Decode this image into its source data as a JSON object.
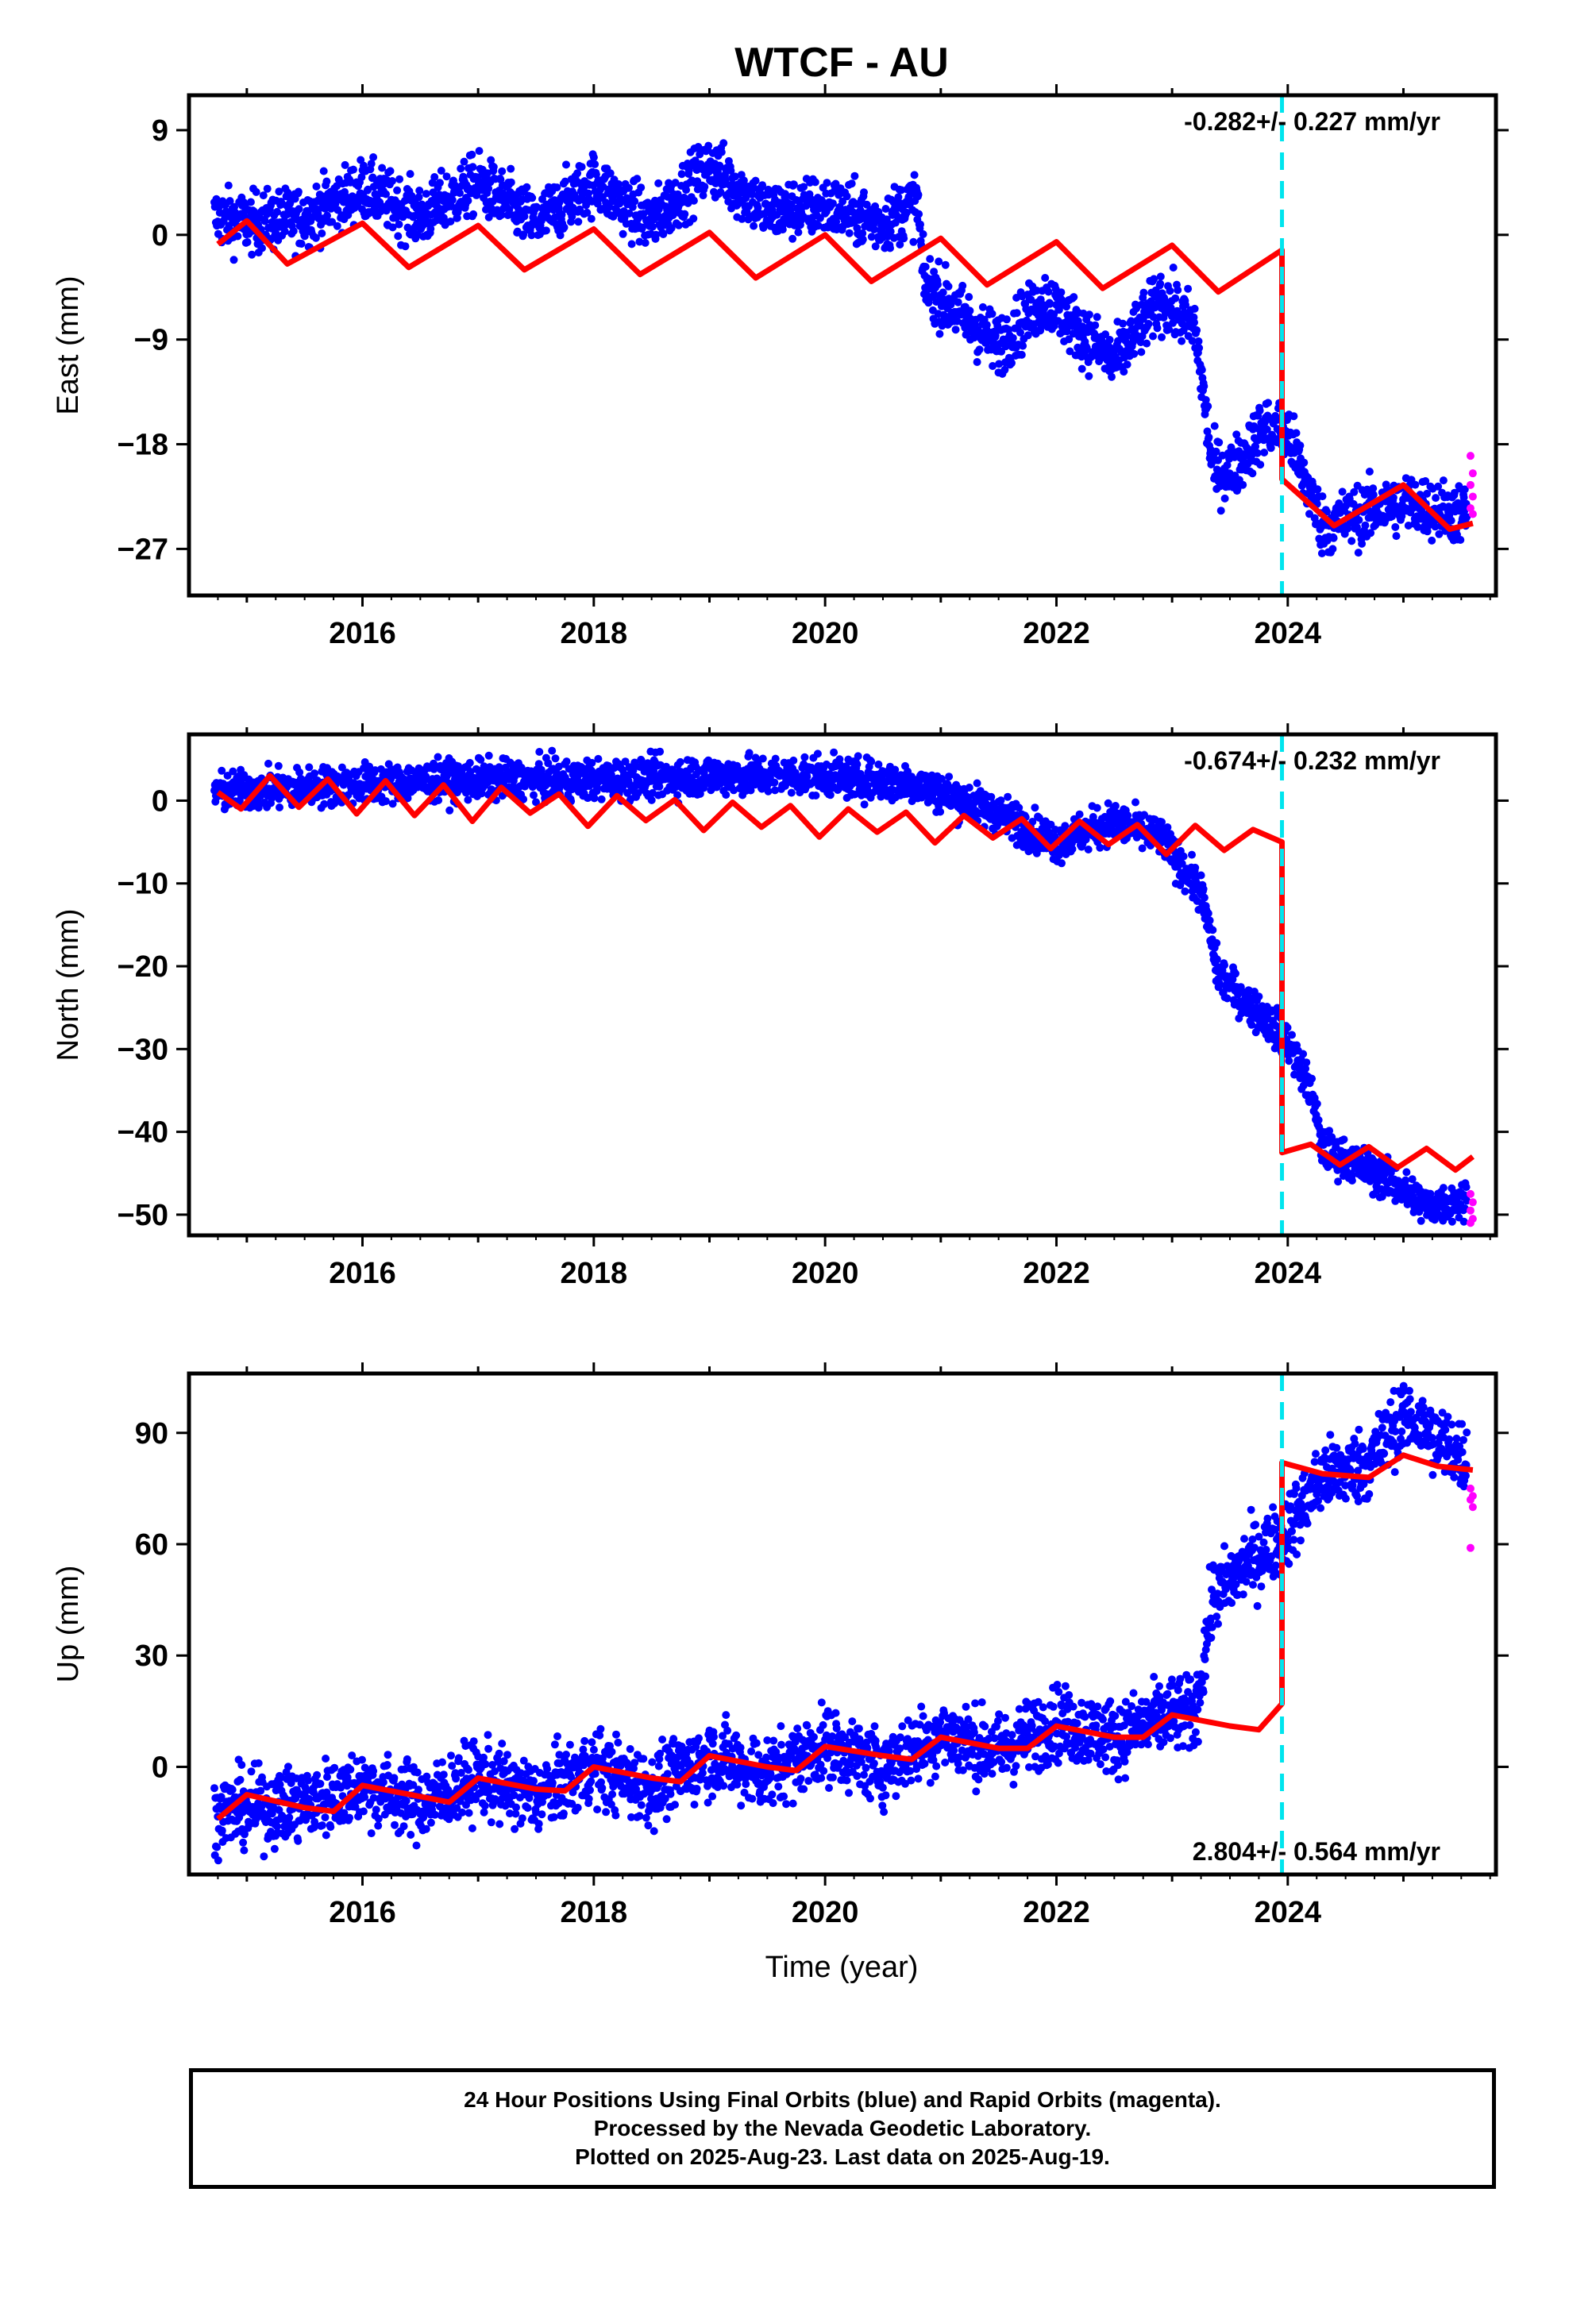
{
  "chart_data": {
    "type": "scatter",
    "title": "WTCF - AU",
    "xlabel": "Time (year)",
    "x_ticks": [
      "2016",
      "2018",
      "2020",
      "2022",
      "2024"
    ],
    "xlim": [
      2014.5,
      2025.8
    ],
    "event_marker_year": 2023.95,
    "colors": {
      "final_orbits": "#0000ff",
      "rapid_orbits": "#ff00ff",
      "model_fit": "#ff0000",
      "event_line": "#00e5ee"
    },
    "panels": [
      {
        "id": "east",
        "ylabel": "East (mm)",
        "ylim": [
          -31,
          12
        ],
        "y_ticks": [
          9,
          0,
          -9,
          -18,
          -27
        ],
        "y_tick_labels": [
          "9",
          "0",
          "−9",
          "−18",
          "−27"
        ],
        "rate_label": "-0.282+/- 0.227 mm/yr",
        "rate_position": "top-right",
        "breakpoints": [
          {
            "x": 2014.75,
            "y": 1.5
          },
          {
            "x": 2015.0,
            "y": 1.0
          },
          {
            "x": 2015.5,
            "y": 1.5
          },
          {
            "x": 2016.0,
            "y": 4.0
          },
          {
            "x": 2016.5,
            "y": 1.5
          },
          {
            "x": 2017.0,
            "y": 4.5
          },
          {
            "x": 2017.5,
            "y": 1.0
          },
          {
            "x": 2018.0,
            "y": 4.5
          },
          {
            "x": 2018.5,
            "y": 1.0
          },
          {
            "x": 2019.0,
            "y": 6.0
          },
          {
            "x": 2019.5,
            "y": 2.0
          },
          {
            "x": 2020.0,
            "y": 2.5
          },
          {
            "x": 2020.5,
            "y": 1.0
          },
          {
            "x": 2020.8,
            "y": 3.0
          },
          {
            "x": 2020.85,
            "y": -4.0
          },
          {
            "x": 2021.3,
            "y": -8.0
          },
          {
            "x": 2021.5,
            "y": -9.5
          },
          {
            "x": 2021.9,
            "y": -5.5
          },
          {
            "x": 2022.5,
            "y": -11.0
          },
          {
            "x": 2022.9,
            "y": -5.5
          },
          {
            "x": 2023.2,
            "y": -8.0
          },
          {
            "x": 2023.35,
            "y": -20.0
          },
          {
            "x": 2023.5,
            "y": -20.5
          },
          {
            "x": 2023.8,
            "y": -16.5
          },
          {
            "x": 2024.0,
            "y": -17.0
          },
          {
            "x": 2024.3,
            "y": -25.0
          },
          {
            "x": 2025.0,
            "y": -23.0
          },
          {
            "x": 2025.5,
            "y": -24.0
          }
        ],
        "model": [
          {
            "x": 2014.75,
            "y": -0.8
          },
          {
            "x": 2015.0,
            "y": 1.2
          },
          {
            "x": 2015.35,
            "y": -2.5
          },
          {
            "x": 2016.0,
            "y": 1.0
          },
          {
            "x": 2016.4,
            "y": -2.8
          },
          {
            "x": 2017.0,
            "y": 0.8
          },
          {
            "x": 2017.4,
            "y": -3.0
          },
          {
            "x": 2018.0,
            "y": 0.5
          },
          {
            "x": 2018.4,
            "y": -3.4
          },
          {
            "x": 2019.0,
            "y": 0.2
          },
          {
            "x": 2019.4,
            "y": -3.7
          },
          {
            "x": 2020.0,
            "y": 0.0
          },
          {
            "x": 2020.4,
            "y": -4.0
          },
          {
            "x": 2021.0,
            "y": -0.3
          },
          {
            "x": 2021.4,
            "y": -4.3
          },
          {
            "x": 2022.0,
            "y": -0.6
          },
          {
            "x": 2022.4,
            "y": -4.6
          },
          {
            "x": 2023.0,
            "y": -0.9
          },
          {
            "x": 2023.4,
            "y": -4.9
          },
          {
            "x": 2023.95,
            "y": -1.3
          },
          {
            "x": 2023.95,
            "y": -21.0
          },
          {
            "x": 2024.4,
            "y": -25.0
          },
          {
            "x": 2025.0,
            "y": -21.5
          },
          {
            "x": 2025.4,
            "y": -25.3
          },
          {
            "x": 2025.6,
            "y": -24.8
          }
        ],
        "rapid_points": [
          -19.0,
          -20.5,
          -21.5,
          -22.5,
          -23.5,
          -24.0
        ]
      },
      {
        "id": "north",
        "ylabel": "North (mm)",
        "ylim": [
          -52.5,
          8
        ],
        "y_ticks": [
          0,
          -10,
          -20,
          -30,
          -40,
          -50
        ],
        "y_tick_labels": [
          "0",
          "−10",
          "−20",
          "−30",
          "−40",
          "−50"
        ],
        "rate_label": "-0.674+/- 0.232 mm/yr",
        "rate_position": "top-right",
        "breakpoints": [
          {
            "x": 2014.75,
            "y": 1.0
          },
          {
            "x": 2016.0,
            "y": 2.0
          },
          {
            "x": 2017.0,
            "y": 2.5
          },
          {
            "x": 2018.0,
            "y": 2.5
          },
          {
            "x": 2019.0,
            "y": 3.0
          },
          {
            "x": 2020.0,
            "y": 3.0
          },
          {
            "x": 2020.8,
            "y": 2.0
          },
          {
            "x": 2021.5,
            "y": -1.5
          },
          {
            "x": 2022.0,
            "y": -5.0
          },
          {
            "x": 2022.5,
            "y": -2.5
          },
          {
            "x": 2022.9,
            "y": -4.5
          },
          {
            "x": 2023.25,
            "y": -11.0
          },
          {
            "x": 2023.4,
            "y": -21.0
          },
          {
            "x": 2023.7,
            "y": -25.0
          },
          {
            "x": 2024.0,
            "y": -29.0
          },
          {
            "x": 2024.2,
            "y": -35.0
          },
          {
            "x": 2024.3,
            "y": -42.0
          },
          {
            "x": 2024.9,
            "y": -46.0
          },
          {
            "x": 2025.2,
            "y": -49.0
          },
          {
            "x": 2025.6,
            "y": -48.0
          }
        ],
        "model": [
          {
            "x": 2014.75,
            "y": 1.0
          },
          {
            "x": 2014.95,
            "y": -1.0
          },
          {
            "x": 2015.2,
            "y": 3.0
          },
          {
            "x": 2015.45,
            "y": -0.8
          },
          {
            "x": 2015.7,
            "y": 2.6
          },
          {
            "x": 2015.95,
            "y": -1.6
          },
          {
            "x": 2016.2,
            "y": 2.4
          },
          {
            "x": 2016.45,
            "y": -1.8
          },
          {
            "x": 2016.7,
            "y": 1.9
          },
          {
            "x": 2016.95,
            "y": -2.5
          },
          {
            "x": 2017.2,
            "y": 1.6
          },
          {
            "x": 2017.45,
            "y": -1.5
          },
          {
            "x": 2017.7,
            "y": 0.8
          },
          {
            "x": 2017.95,
            "y": -3.1
          },
          {
            "x": 2018.2,
            "y": 0.6
          },
          {
            "x": 2018.45,
            "y": -2.4
          },
          {
            "x": 2018.7,
            "y": 0.1
          },
          {
            "x": 2018.95,
            "y": -3.6
          },
          {
            "x": 2019.2,
            "y": -0.2
          },
          {
            "x": 2019.45,
            "y": -3.2
          },
          {
            "x": 2019.7,
            "y": -0.6
          },
          {
            "x": 2019.95,
            "y": -4.4
          },
          {
            "x": 2020.2,
            "y": -1.0
          },
          {
            "x": 2020.45,
            "y": -3.8
          },
          {
            "x": 2020.7,
            "y": -1.4
          },
          {
            "x": 2020.95,
            "y": -5.1
          },
          {
            "x": 2021.2,
            "y": -1.8
          },
          {
            "x": 2021.45,
            "y": -4.5
          },
          {
            "x": 2021.7,
            "y": -2.2
          },
          {
            "x": 2021.95,
            "y": -5.8
          },
          {
            "x": 2022.2,
            "y": -2.5
          },
          {
            "x": 2022.45,
            "y": -5.3
          },
          {
            "x": 2022.7,
            "y": -2.9
          },
          {
            "x": 2022.95,
            "y": -6.5
          },
          {
            "x": 2023.2,
            "y": -3.0
          },
          {
            "x": 2023.45,
            "y": -6.0
          },
          {
            "x": 2023.7,
            "y": -3.5
          },
          {
            "x": 2023.95,
            "y": -5.0
          },
          {
            "x": 2023.95,
            "y": -42.5
          },
          {
            "x": 2024.2,
            "y": -41.5
          },
          {
            "x": 2024.45,
            "y": -44.0
          },
          {
            "x": 2024.7,
            "y": -41.8
          },
          {
            "x": 2024.95,
            "y": -44.3
          },
          {
            "x": 2025.2,
            "y": -42.0
          },
          {
            "x": 2025.45,
            "y": -44.6
          },
          {
            "x": 2025.6,
            "y": -43.0
          }
        ],
        "rapid_points": [
          -47.5,
          -48.5,
          -49.5,
          -50.5,
          -51.0
        ]
      },
      {
        "id": "up",
        "ylabel": "Up (mm)",
        "ylim": [
          -29,
          106
        ],
        "y_ticks": [
          90,
          60,
          30,
          0
        ],
        "y_tick_labels": [
          "90",
          "60",
          "30",
          "0"
        ],
        "rate_label": "2.804+/- 0.564 mm/yr",
        "rate_position": "bottom-right",
        "breakpoints": [
          {
            "x": 2014.75,
            "y": -12.0
          },
          {
            "x": 2015.5,
            "y": -10.0
          },
          {
            "x": 2016.0,
            "y": -5.0
          },
          {
            "x": 2016.5,
            "y": -10.0
          },
          {
            "x": 2017.0,
            "y": -3.0
          },
          {
            "x": 2017.5,
            "y": -8.0
          },
          {
            "x": 2018.0,
            "y": 0.0
          },
          {
            "x": 2018.5,
            "y": -6.0
          },
          {
            "x": 2019.0,
            "y": 3.0
          },
          {
            "x": 2019.5,
            "y": -2.0
          },
          {
            "x": 2020.0,
            "y": 6.0
          },
          {
            "x": 2020.5,
            "y": 0.0
          },
          {
            "x": 2021.0,
            "y": 9.0
          },
          {
            "x": 2021.5,
            "y": 4.0
          },
          {
            "x": 2022.0,
            "y": 12.0
          },
          {
            "x": 2022.5,
            "y": 8.0
          },
          {
            "x": 2023.0,
            "y": 14.0
          },
          {
            "x": 2023.2,
            "y": 14.0
          },
          {
            "x": 2023.35,
            "y": 45.0
          },
          {
            "x": 2023.55,
            "y": 52.0
          },
          {
            "x": 2023.95,
            "y": 62.0
          },
          {
            "x": 2024.3,
            "y": 78.0
          },
          {
            "x": 2024.7,
            "y": 82.0
          },
          {
            "x": 2025.0,
            "y": 95.0
          },
          {
            "x": 2025.3,
            "y": 88.0
          },
          {
            "x": 2025.6,
            "y": 82.0
          }
        ],
        "model": [
          {
            "x": 2014.75,
            "y": -14.0
          },
          {
            "x": 2015.0,
            "y": -7.5
          },
          {
            "x": 2015.5,
            "y": -11.0
          },
          {
            "x": 2015.75,
            "y": -12.0
          },
          {
            "x": 2016.0,
            "y": -5.0
          },
          {
            "x": 2016.5,
            "y": -8.0
          },
          {
            "x": 2016.75,
            "y": -9.5
          },
          {
            "x": 2017.0,
            "y": -3.0
          },
          {
            "x": 2017.5,
            "y": -6.0
          },
          {
            "x": 2017.75,
            "y": -6.5
          },
          {
            "x": 2018.0,
            "y": 0.0
          },
          {
            "x": 2018.5,
            "y": -3.0
          },
          {
            "x": 2018.75,
            "y": -4.0
          },
          {
            "x": 2019.0,
            "y": 3.0
          },
          {
            "x": 2019.5,
            "y": 0.0
          },
          {
            "x": 2019.75,
            "y": -1.0
          },
          {
            "x": 2020.0,
            "y": 5.5
          },
          {
            "x": 2020.5,
            "y": 3.0
          },
          {
            "x": 2020.75,
            "y": 2.0
          },
          {
            "x": 2021.0,
            "y": 8.0
          },
          {
            "x": 2021.5,
            "y": 5.0
          },
          {
            "x": 2021.75,
            "y": 5.0
          },
          {
            "x": 2022.0,
            "y": 11.0
          },
          {
            "x": 2022.5,
            "y": 8.0
          },
          {
            "x": 2022.75,
            "y": 8.0
          },
          {
            "x": 2023.0,
            "y": 14.0
          },
          {
            "x": 2023.5,
            "y": 11.0
          },
          {
            "x": 2023.75,
            "y": 10.0
          },
          {
            "x": 2023.95,
            "y": 17.0
          },
          {
            "x": 2023.95,
            "y": 82.0
          },
          {
            "x": 2024.3,
            "y": 79.0
          },
          {
            "x": 2024.7,
            "y": 78.0
          },
          {
            "x": 2025.0,
            "y": 84.0
          },
          {
            "x": 2025.3,
            "y": 81.0
          },
          {
            "x": 2025.6,
            "y": 80.0
          }
        ],
        "rapid_points": [
          59.0,
          70.0,
          72.0,
          73.0,
          75.0
        ]
      }
    ]
  },
  "footer": {
    "line1": "24 Hour Positions Using Final Orbits (blue) and Rapid Orbits (magenta).",
    "line2": "Processed by the Nevada Geodetic Laboratory.",
    "line3": "Plotted on 2025-Aug-23. Last data on 2025-Aug-19."
  }
}
